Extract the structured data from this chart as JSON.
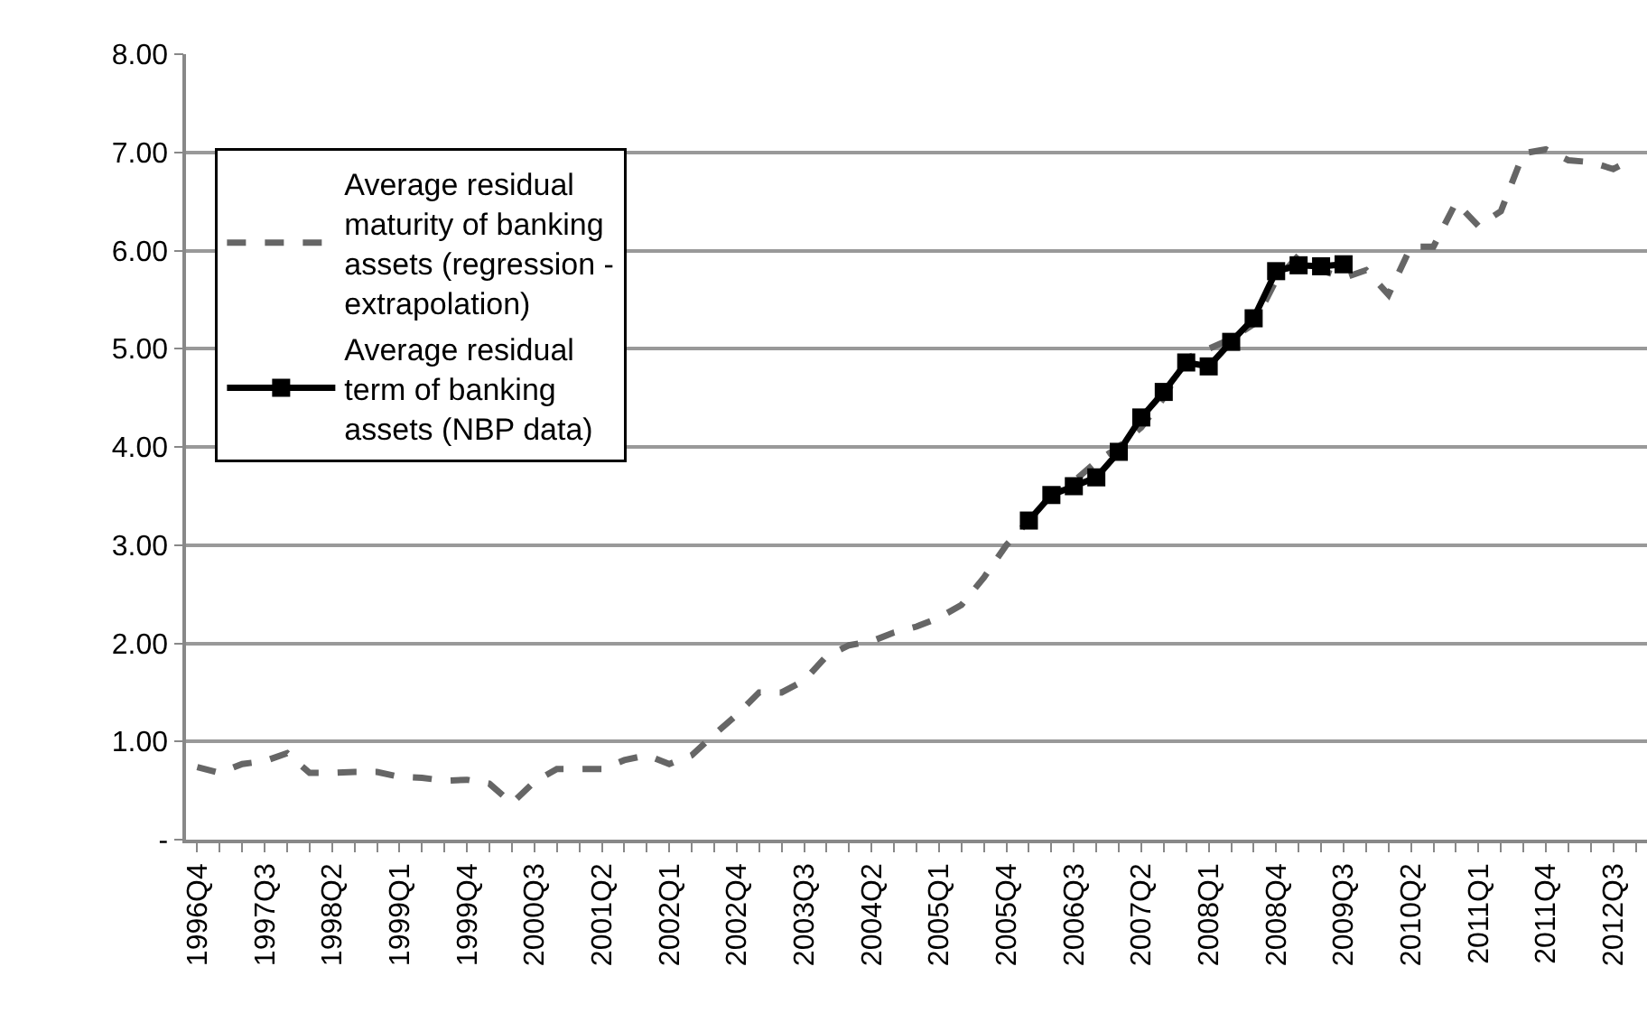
{
  "chart_data": {
    "type": "line",
    "categories": [
      "1996Q4",
      null,
      null,
      "1997Q3",
      null,
      null,
      "1998Q2",
      null,
      null,
      "1999Q1",
      null,
      null,
      "1999Q4",
      null,
      null,
      "2000Q3",
      null,
      null,
      "2001Q2",
      null,
      null,
      "2002Q1",
      null,
      null,
      "2002Q4",
      null,
      null,
      "2003Q3",
      null,
      null,
      "2004Q2",
      null,
      null,
      "2005Q1",
      null,
      null,
      "2005Q4",
      null,
      null,
      "2006Q3",
      null,
      null,
      "2007Q2",
      null,
      null,
      "2008Q1",
      null,
      null,
      "2008Q4",
      null,
      null,
      "2009Q3",
      null,
      null,
      "2010Q2",
      null,
      null,
      "2011Q1",
      null,
      null,
      "2011Q4",
      null,
      null,
      "2012Q3",
      null
    ],
    "series": [
      {
        "name": "Average residual maturity of banking assets (regression - extrapolation)",
        "color": "#666666",
        "line_style": "dashed",
        "marker": "none",
        "values": [
          0.74,
          0.68,
          0.77,
          0.8,
          0.88,
          0.68,
          0.68,
          0.69,
          0.69,
          0.64,
          0.63,
          0.6,
          0.61,
          0.57,
          0.37,
          0.59,
          0.72,
          0.72,
          0.72,
          0.81,
          0.86,
          0.77,
          0.86,
          1.07,
          1.27,
          1.5,
          1.5,
          1.62,
          1.87,
          1.98,
          2.02,
          2.11,
          2.17,
          2.26,
          2.39,
          2.67,
          3.0,
          3.25,
          3.5,
          3.65,
          3.85,
          4.0,
          4.2,
          4.5,
          4.9,
          5.0,
          5.1,
          5.25,
          5.7,
          5.95,
          5.8,
          5.72,
          5.8,
          5.55,
          6.04,
          6.04,
          6.49,
          6.25,
          6.4,
          6.99,
          7.03,
          6.92,
          6.9,
          6.83,
          6.95
        ]
      },
      {
        "name": "Average residual term of banking assets (NBP data)",
        "color": "#000000",
        "line_style": "solid",
        "marker": "square",
        "values": [
          null,
          null,
          null,
          null,
          null,
          null,
          null,
          null,
          null,
          null,
          null,
          null,
          null,
          null,
          null,
          null,
          null,
          null,
          null,
          null,
          null,
          null,
          null,
          null,
          null,
          null,
          null,
          null,
          null,
          null,
          null,
          null,
          null,
          null,
          null,
          null,
          null,
          3.25,
          3.51,
          3.6,
          3.69,
          3.95,
          4.3,
          4.56,
          4.86,
          4.82,
          5.07,
          5.31,
          5.79,
          5.85,
          5.84,
          5.86,
          null,
          null,
          null,
          null,
          null,
          null,
          null,
          null,
          null,
          null,
          null,
          null,
          null
        ]
      }
    ],
    "ylim": [
      0,
      8
    ],
    "yticks": [
      {
        "value": 0,
        "label": "-"
      },
      {
        "value": 1,
        "label": "1.00"
      },
      {
        "value": 2,
        "label": "2.00"
      },
      {
        "value": 3,
        "label": "3.00"
      },
      {
        "value": 4,
        "label": "4.00"
      },
      {
        "value": 5,
        "label": "5.00"
      },
      {
        "value": 6,
        "label": "6.00"
      },
      {
        "value": 7,
        "label": "7.00"
      },
      {
        "value": 8,
        "label": "8.00"
      }
    ],
    "grid": "y",
    "legend": "top left"
  }
}
